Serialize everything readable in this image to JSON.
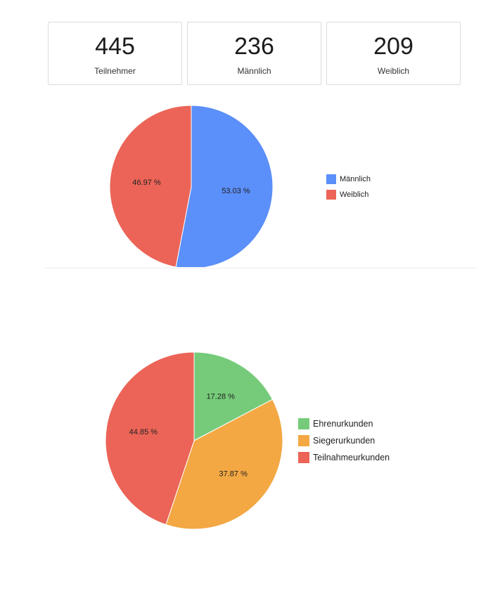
{
  "stats": [
    {
      "value": "445",
      "label": "Teilnehmer"
    },
    {
      "value": "236",
      "label": "Männlich"
    },
    {
      "value": "209",
      "label": "Weiblich"
    }
  ],
  "chart_data": [
    {
      "type": "pie",
      "title": "",
      "legend_position": "right",
      "slices": [
        {
          "label": "Männlich",
          "value": 53.03,
          "display": "53.03 %",
          "color": "#5b8ff9"
        },
        {
          "label": "Weiblich",
          "value": 46.97,
          "display": "46.97 %",
          "color": "#eb6457"
        }
      ]
    },
    {
      "type": "pie",
      "title": "",
      "legend_position": "right",
      "slices": [
        {
          "label": "Ehrenurkunden",
          "value": 17.28,
          "display": "17.28 %",
          "color": "#76cb7a"
        },
        {
          "label": "Siegerurkunden",
          "value": 37.87,
          "display": "37.87 %",
          "color": "#f3a843"
        },
        {
          "label": "Teilnahmeurkunden",
          "value": 44.85,
          "display": "44.85 %",
          "color": "#eb6457"
        }
      ]
    }
  ]
}
